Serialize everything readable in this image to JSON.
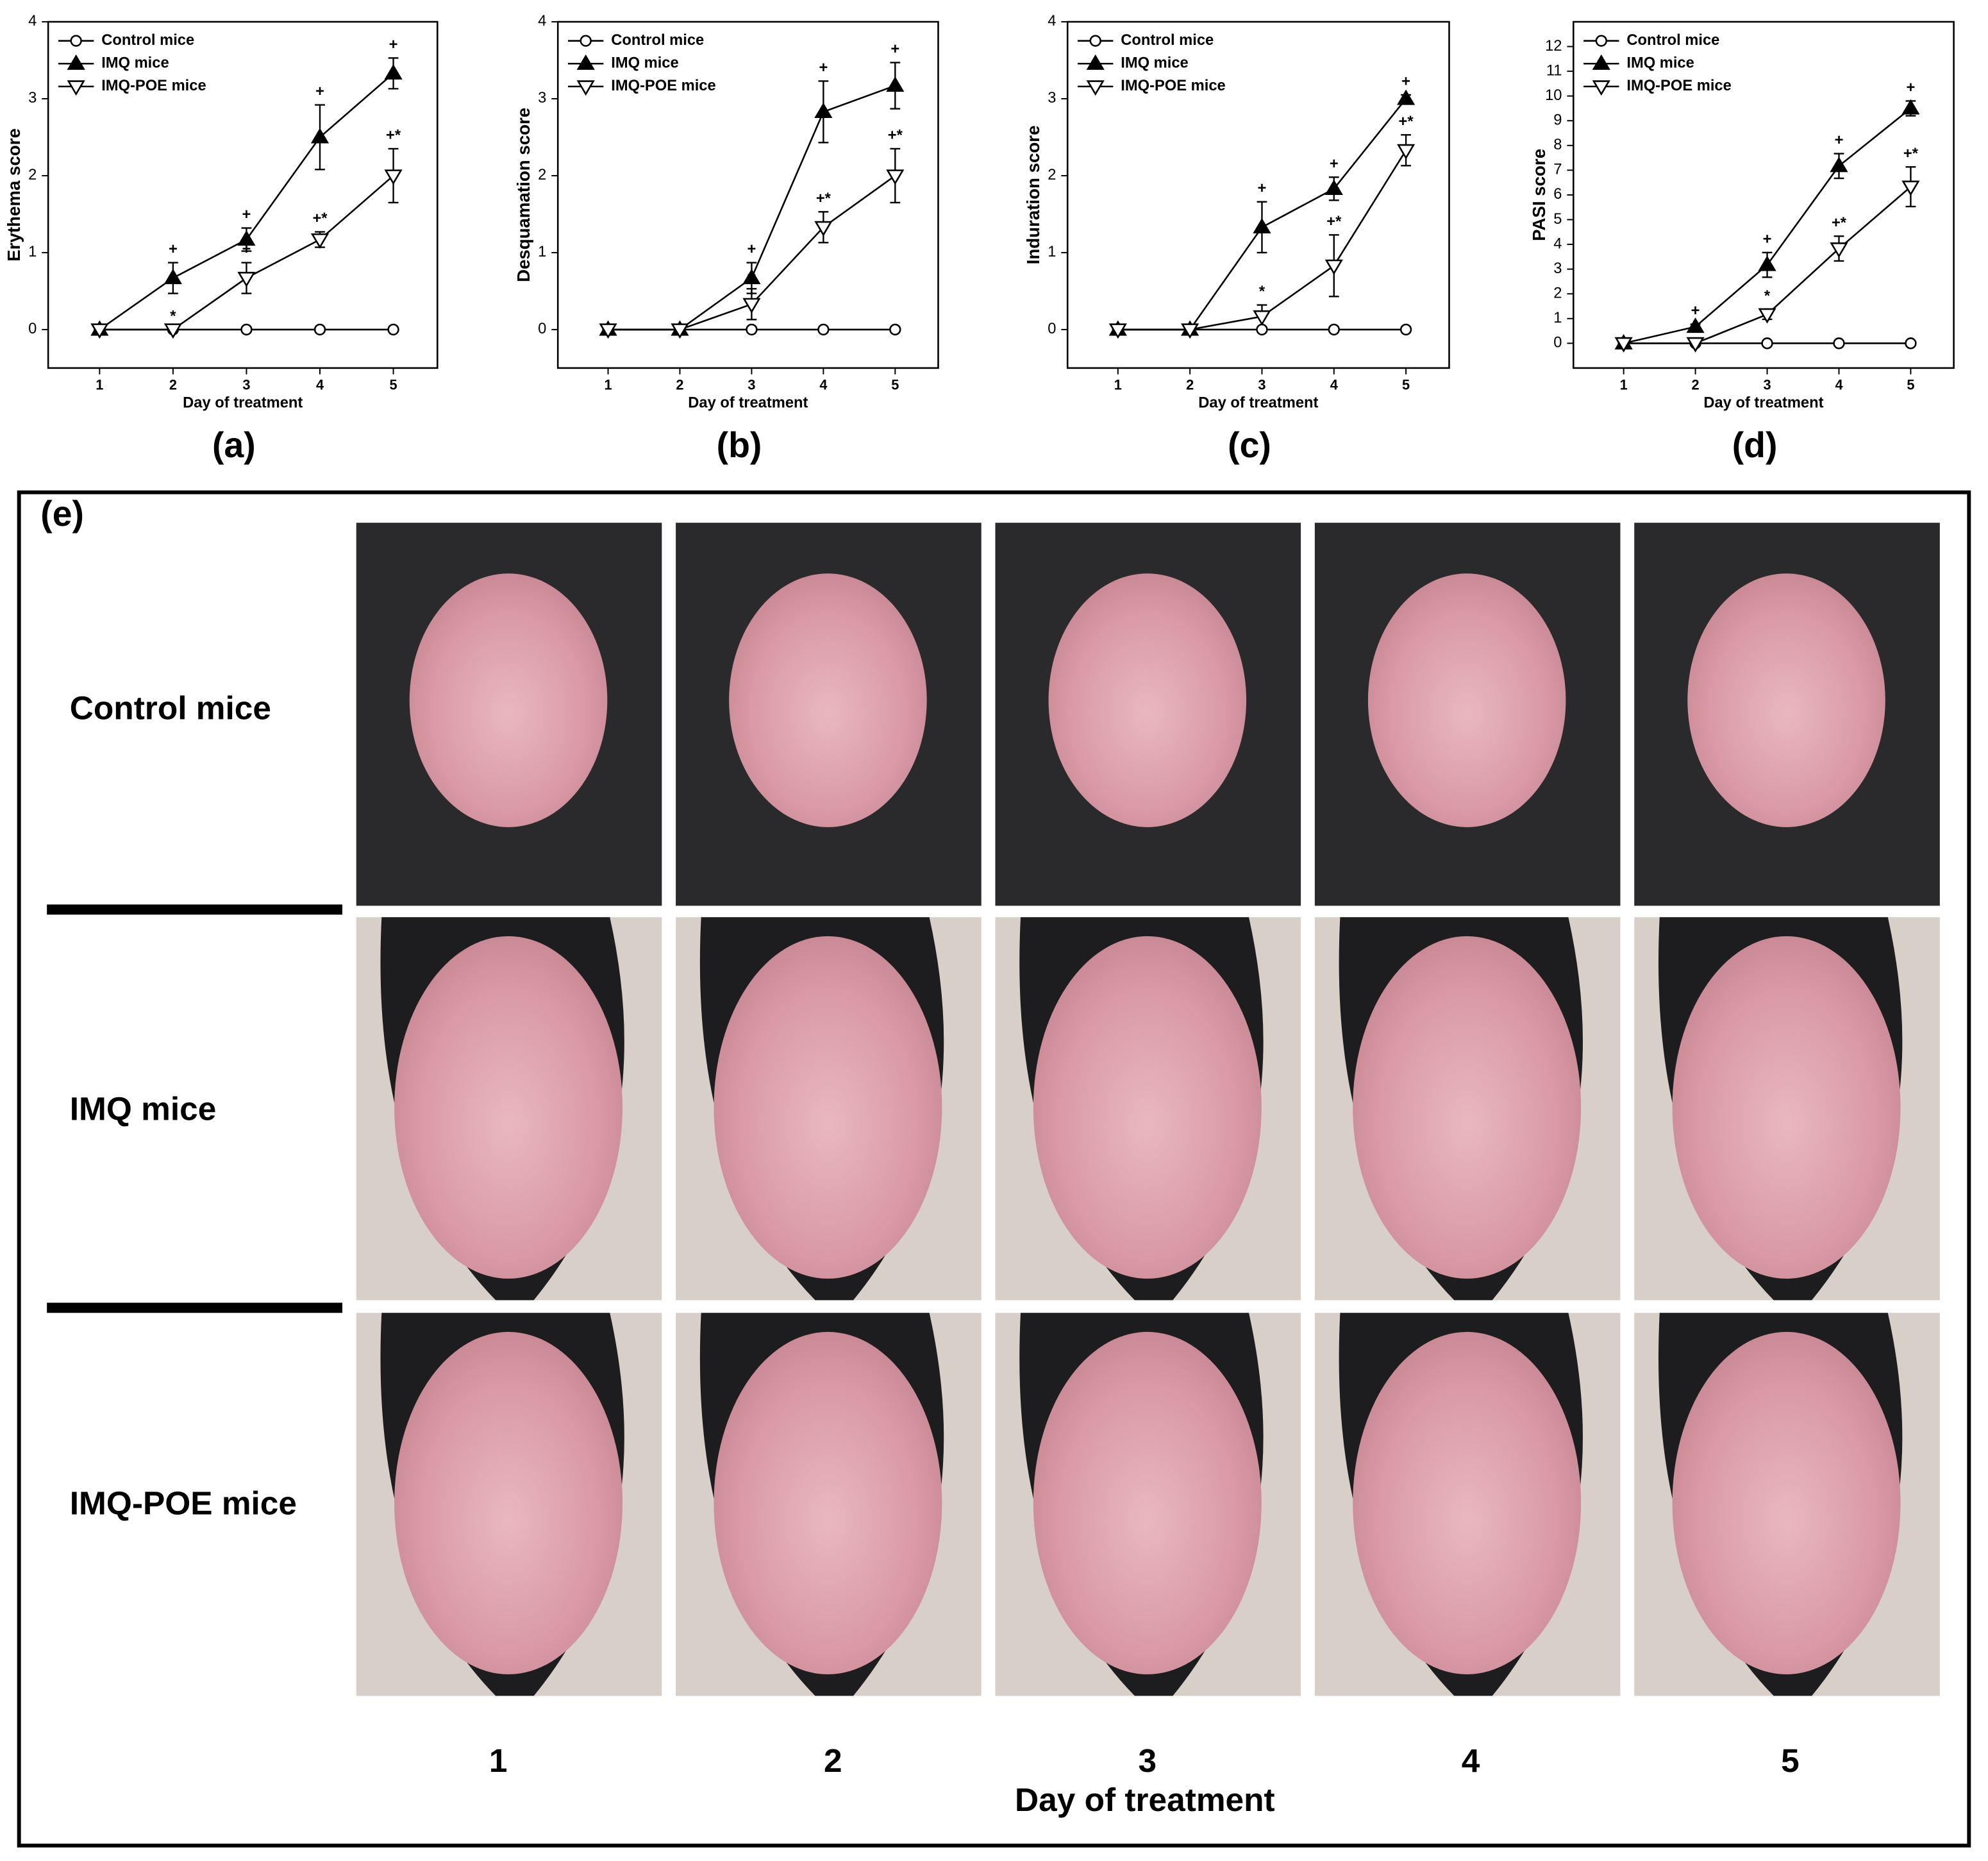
{
  "chart_data": [
    {
      "type": "line",
      "panel_label": "(a)",
      "ylabel": "Erythema score",
      "xlabel": "Day of treatment",
      "x": [
        1,
        2,
        3,
        4,
        5
      ],
      "xlim": [
        0.3,
        5.6
      ],
      "xticks": [
        1,
        2,
        3,
        4,
        5
      ],
      "ylim": [
        -0.5,
        4
      ],
      "yticks": [
        0,
        1,
        2,
        3,
        4
      ],
      "series": [
        {
          "name": "Control mice",
          "color": "#000000",
          "marker": "circle",
          "values": [
            0,
            0,
            0,
            0,
            0
          ]
        },
        {
          "name": "IMQ mice",
          "color": "#000000",
          "marker": "triangle-up",
          "values": [
            0,
            0.67,
            1.17,
            2.5,
            3.33
          ],
          "errors": [
            0,
            0.2,
            0.15,
            0.42,
            0.2
          ],
          "point_labels": [
            null,
            "+",
            "+",
            "+",
            "+"
          ]
        },
        {
          "name": "IMQ-POE mice",
          "color": "#000000",
          "marker": "triangle-down",
          "values": [
            0,
            0,
            0.67,
            1.17,
            2.0
          ],
          "errors": [
            0,
            0,
            0.2,
            0.1,
            0.35
          ],
          "point_labels": [
            null,
            "*",
            "+",
            "+*",
            "+*"
          ]
        }
      ]
    },
    {
      "type": "line",
      "panel_label": "(b)",
      "ylabel": "Desquamation  score",
      "xlabel": "Day of treatment",
      "x": [
        1,
        2,
        3,
        4,
        5
      ],
      "xlim": [
        0.3,
        5.6
      ],
      "xticks": [
        1,
        2,
        3,
        4,
        5
      ],
      "ylim": [
        -0.5,
        4
      ],
      "yticks": [
        0,
        1,
        2,
        3,
        4
      ],
      "series": [
        {
          "name": "Control mice",
          "color": "#000000",
          "marker": "circle",
          "values": [
            0,
            0,
            0,
            0,
            0
          ]
        },
        {
          "name": "IMQ mice",
          "color": "#000000",
          "marker": "triangle-up",
          "values": [
            0,
            0,
            0.67,
            2.83,
            3.17
          ],
          "errors": [
            0,
            0,
            0.2,
            0.4,
            0.3
          ],
          "point_labels": [
            null,
            null,
            "+",
            "+",
            "+"
          ]
        },
        {
          "name": "IMQ-POE mice",
          "color": "#000000",
          "marker": "triangle-down",
          "values": [
            0,
            0,
            0.33,
            1.33,
            2.0
          ],
          "errors": [
            0,
            0,
            0.2,
            0.2,
            0.35
          ],
          "point_labels": [
            null,
            null,
            "+",
            "+*",
            "+*"
          ]
        }
      ]
    },
    {
      "type": "line",
      "panel_label": "(c)",
      "ylabel": "Induration score",
      "xlabel": "Day of treatment",
      "x": [
        1,
        2,
        3,
        4,
        5
      ],
      "xlim": [
        0.3,
        5.6
      ],
      "xticks": [
        1,
        2,
        3,
        4,
        5
      ],
      "ylim": [
        -0.5,
        4
      ],
      "yticks": [
        0,
        1,
        2,
        3,
        4
      ],
      "series": [
        {
          "name": "Control mice",
          "color": "#000000",
          "marker": "circle",
          "values": [
            0,
            0,
            0,
            0,
            0
          ]
        },
        {
          "name": "IMQ mice",
          "color": "#000000",
          "marker": "triangle-up",
          "values": [
            0,
            0,
            1.33,
            1.83,
            3.0
          ],
          "errors": [
            0,
            0,
            0.33,
            0.15,
            0.05
          ],
          "point_labels": [
            null,
            null,
            "+",
            "+",
            "+"
          ]
        },
        {
          "name": "IMQ-POE mice",
          "color": "#000000",
          "marker": "triangle-down",
          "values": [
            0,
            0,
            0.17,
            0.83,
            2.33
          ],
          "errors": [
            0,
            0,
            0.15,
            0.4,
            0.2
          ],
          "point_labels": [
            null,
            null,
            "*",
            "+*",
            "+*"
          ]
        }
      ]
    },
    {
      "type": "line",
      "panel_label": "(d)",
      "ylabel": "PASI score",
      "xlabel": "Day of treatment",
      "x": [
        1,
        2,
        3,
        4,
        5
      ],
      "xlim": [
        0.3,
        5.6
      ],
      "xticks": [
        1,
        2,
        3,
        4,
        5
      ],
      "ylim": [
        -1,
        13
      ],
      "yticks": [
        0,
        1,
        2,
        3,
        4,
        5,
        6,
        7,
        8,
        9,
        10,
        11,
        12
      ],
      "series": [
        {
          "name": "Control mice",
          "color": "#000000",
          "marker": "circle",
          "values": [
            0,
            0,
            0,
            0,
            0
          ]
        },
        {
          "name": "IMQ mice",
          "color": "#000000",
          "marker": "triangle-up",
          "values": [
            0,
            0.67,
            3.17,
            7.17,
            9.5
          ],
          "errors": [
            0,
            0.1,
            0.5,
            0.5,
            0.3
          ],
          "point_labels": [
            null,
            "+",
            "+",
            "+",
            "+"
          ]
        },
        {
          "name": "IMQ-POE mice",
          "color": "#000000",
          "marker": "triangle-down",
          "values": [
            0,
            0,
            1.17,
            3.83,
            6.33
          ],
          "errors": [
            0,
            0,
            0.2,
            0.5,
            0.8
          ],
          "point_labels": [
            null,
            "*",
            "*",
            "+*",
            "+*"
          ]
        }
      ]
    }
  ],
  "photo_panel": {
    "label": "(e)",
    "rows": [
      "Control mice",
      "IMQ mice",
      "IMQ-POE mice"
    ],
    "columns": [
      "1",
      "2",
      "3",
      "4",
      "5"
    ],
    "xlabel": "Day of treatment"
  }
}
